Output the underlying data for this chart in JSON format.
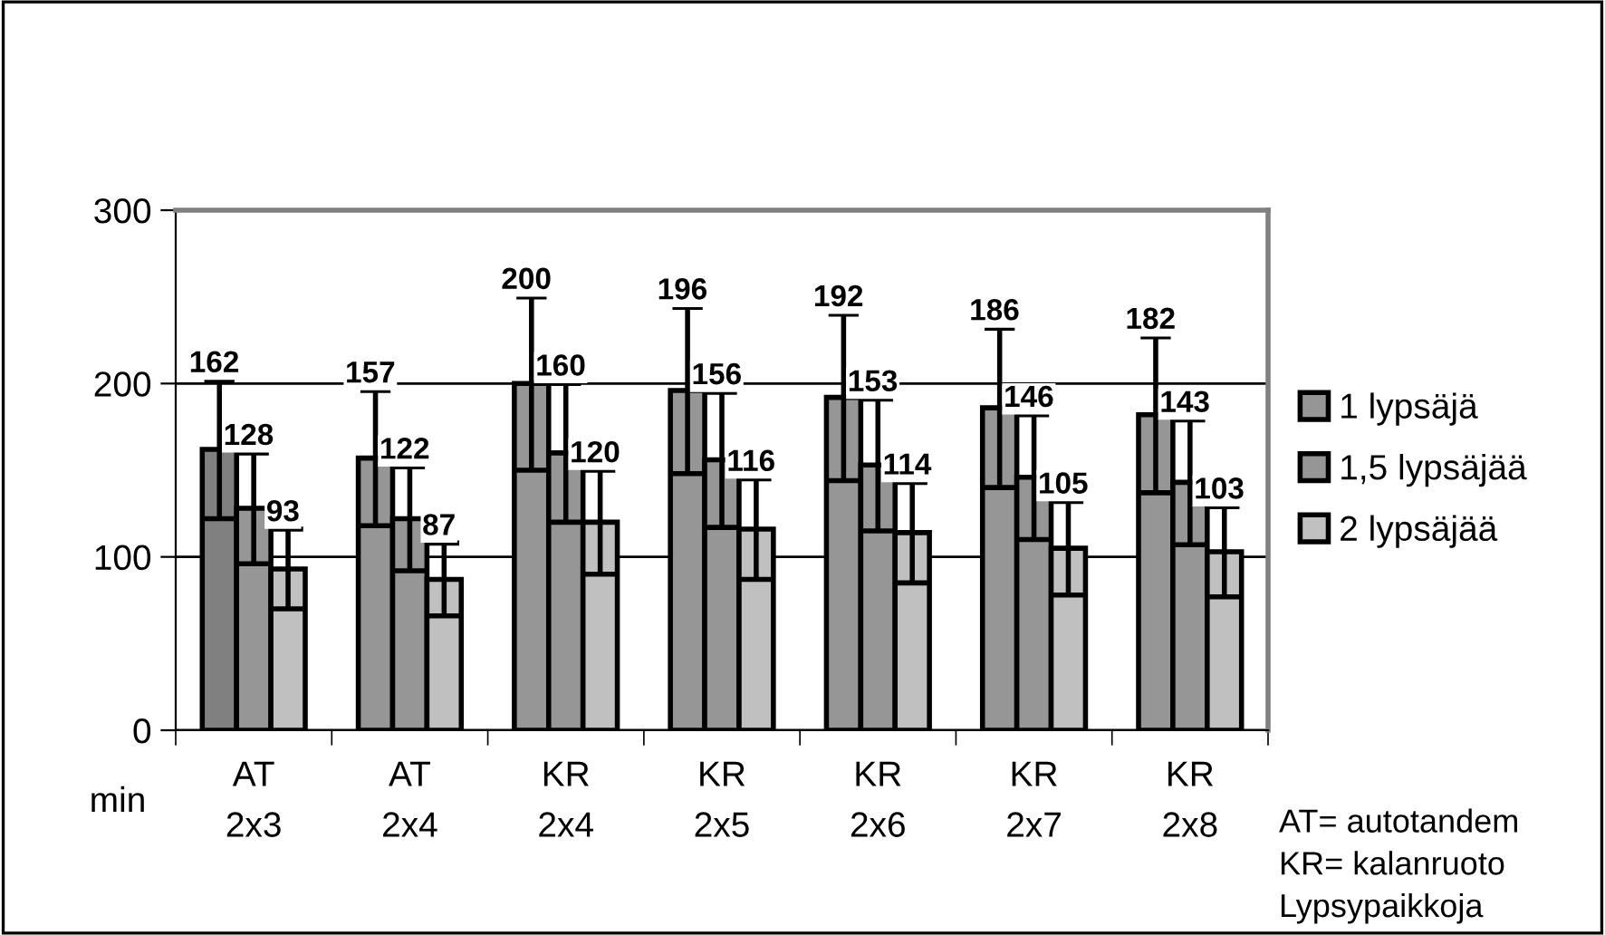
{
  "chart_data": {
    "type": "bar",
    "ylabel": "min",
    "categories": [
      "AT\n2x3",
      "AT\n2x4",
      "KR\n2x4",
      "KR\n2x5",
      "KR\n2x6",
      "KR\n2x7",
      "KR\n2x8"
    ],
    "series": [
      {
        "name": "1 lypsäjä",
        "color": "#969696",
        "colors": [
          "#808080",
          "#969696",
          "#969696",
          "#969696",
          "#969696",
          "#969696",
          "#969696"
        ],
        "values": [
          162,
          157,
          200,
          196,
          192,
          186,
          182
        ],
        "errors": [
          40,
          39,
          50,
          48,
          48,
          46,
          45
        ]
      },
      {
        "name": "1,5 lypsäjää",
        "color": "#969696",
        "values": [
          128,
          122,
          160,
          156,
          153,
          146,
          143
        ],
        "errors": [
          32,
          30,
          40,
          39,
          38,
          36,
          36
        ]
      },
      {
        "name": "2 lypsäjää",
        "color": "#c0c0c0",
        "values": [
          93,
          87,
          120,
          116,
          114,
          105,
          103
        ],
        "errors": [
          23,
          21,
          30,
          29,
          29,
          27,
          26
        ]
      }
    ],
    "ylim": [
      0,
      300
    ],
    "yticks": [
      0,
      100,
      200,
      300
    ],
    "grid": "y",
    "legend": "right",
    "data_labels": true,
    "annotations": [
      "AT= autotandem\nKR= kalanruoto\nLypsypaikkoja"
    ]
  }
}
